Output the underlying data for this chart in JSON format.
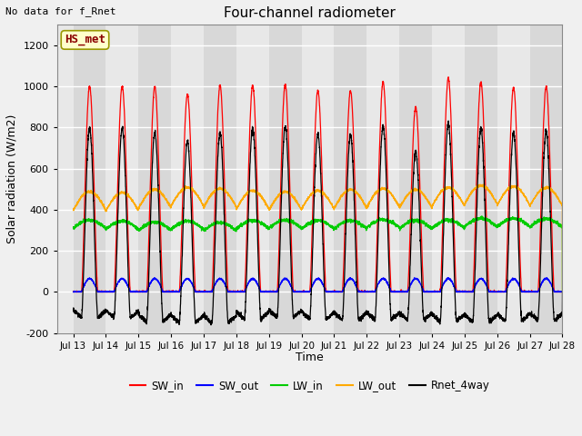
{
  "title": "Four-channel radiometer",
  "top_left_text": "No data for f_Rnet",
  "station_label": "HS_met",
  "ylabel": "Solar radiation (W/m2)",
  "xlabel": "Time",
  "xlim_days": [
    12.5,
    28.0
  ],
  "ylim": [
    -200,
    1300
  ],
  "yticks": [
    -200,
    0,
    200,
    400,
    600,
    800,
    1000,
    1200
  ],
  "xtick_labels": [
    "Jul 13",
    "Jul 14",
    "Jul 15",
    "Jul 16",
    "Jul 17",
    "Jul 18",
    "Jul 19",
    "Jul 20",
    "Jul 21",
    "Jul 22",
    "Jul 23",
    "Jul 24",
    "Jul 25",
    "Jul 26",
    "Jul 27",
    "Jul 28"
  ],
  "xtick_positions": [
    13,
    14,
    15,
    16,
    17,
    18,
    19,
    20,
    21,
    22,
    23,
    24,
    25,
    26,
    27,
    28
  ],
  "colors": {
    "SW_in": "#ff0000",
    "SW_out": "#0000ff",
    "LW_in": "#00cc00",
    "LW_out": "#ffaa00",
    "Rnet_4way": "#000000"
  },
  "legend_entries": [
    "SW_in",
    "SW_out",
    "LW_in",
    "LW_out",
    "Rnet_4way"
  ],
  "fig_bg_color": "#f0f0f0",
  "plot_bg_color": "#e8e8e8",
  "grid_color": "#ffffff",
  "band_colors": [
    "#d8d8d8",
    "#e8e8e8"
  ]
}
